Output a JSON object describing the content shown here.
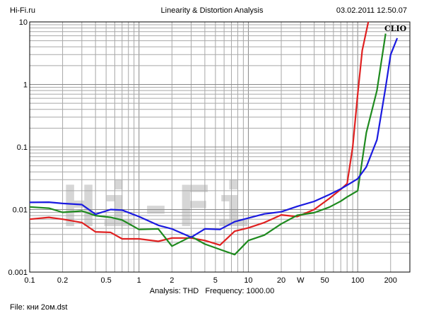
{
  "header": {
    "brand": "Hi-Fi.ru",
    "title": "Linearity & Distortion Analysis",
    "timestamp": "03.02.2011 12.50.07"
  },
  "footer": {
    "analysis_label": "Analysis: THD",
    "frequency_label": "Frequency: 1000.00",
    "file_label": "File: кни 2ом.dst"
  },
  "chart_data": {
    "type": "line",
    "title": "Linearity & Distortion Analysis",
    "xscale": "log",
    "yscale": "log",
    "xlim": [
      0.1,
      300
    ],
    "ylim": [
      0.001,
      10
    ],
    "grid": true,
    "x_tick_labels": [
      {
        "value": 0.1,
        "label": "0.1"
      },
      {
        "value": 0.2,
        "label": "0.2"
      },
      {
        "value": 0.5,
        "label": "0.5"
      },
      {
        "value": 1,
        "label": "1"
      },
      {
        "value": 2,
        "label": "2"
      },
      {
        "value": 5,
        "label": "5"
      },
      {
        "value": 10,
        "label": "10"
      },
      {
        "value": 20,
        "label": "20"
      },
      {
        "value": 30,
        "label": "W"
      },
      {
        "value": 50,
        "label": "50"
      },
      {
        "value": 100,
        "label": "100"
      },
      {
        "value": 200,
        "label": "200"
      }
    ],
    "y_tick_labels": [
      {
        "value": 10,
        "label": "10"
      },
      {
        "value": 1,
        "label": "1"
      },
      {
        "value": 0.1,
        "label": "0.1"
      },
      {
        "value": 0.01,
        "label": "0.01"
      },
      {
        "value": 0.001,
        "label": "0.001"
      }
    ],
    "brand_mark": "CLIO",
    "watermark": "Hi-Fi",
    "series": [
      {
        "color": "#e02020",
        "points": [
          [
            0.1,
            0.007
          ],
          [
            0.15,
            0.0075
          ],
          [
            0.2,
            0.007
          ],
          [
            0.3,
            0.0062
          ],
          [
            0.4,
            0.0044
          ],
          [
            0.55,
            0.0043
          ],
          [
            0.7,
            0.0034
          ],
          [
            1,
            0.0034
          ],
          [
            1.5,
            0.0031
          ],
          [
            2,
            0.0035
          ],
          [
            3,
            0.0035
          ],
          [
            4,
            0.0032
          ],
          [
            5.5,
            0.0027
          ],
          [
            7.5,
            0.0045
          ],
          [
            10,
            0.0051
          ],
          [
            14,
            0.0062
          ],
          [
            20,
            0.0082
          ],
          [
            28,
            0.0077
          ],
          [
            40,
            0.01
          ],
          [
            55,
            0.015
          ],
          [
            70,
            0.021
          ],
          [
            80,
            0.026
          ],
          [
            90,
            0.1
          ],
          [
            100,
            0.7
          ],
          [
            110,
            3.5
          ],
          [
            125,
            10
          ]
        ]
      },
      {
        "color": "#1e8a1e",
        "points": [
          [
            0.1,
            0.011
          ],
          [
            0.15,
            0.0105
          ],
          [
            0.2,
            0.009
          ],
          [
            0.3,
            0.0095
          ],
          [
            0.4,
            0.008
          ],
          [
            0.55,
            0.0075
          ],
          [
            0.7,
            0.0068
          ],
          [
            1,
            0.0048
          ],
          [
            1.5,
            0.0049
          ],
          [
            2,
            0.0026
          ],
          [
            3,
            0.0037
          ],
          [
            4,
            0.0028
          ],
          [
            5.5,
            0.0023
          ],
          [
            7.5,
            0.0019
          ],
          [
            10,
            0.0032
          ],
          [
            14,
            0.0039
          ],
          [
            20,
            0.0059
          ],
          [
            28,
            0.0081
          ],
          [
            40,
            0.0089
          ],
          [
            55,
            0.0109
          ],
          [
            70,
            0.0136
          ],
          [
            80,
            0.0159
          ],
          [
            100,
            0.02
          ],
          [
            120,
            0.17
          ],
          [
            150,
            0.8
          ],
          [
            180,
            6.5
          ]
        ]
      },
      {
        "color": "#1a1ae0",
        "points": [
          [
            0.1,
            0.013
          ],
          [
            0.15,
            0.0131
          ],
          [
            0.2,
            0.0125
          ],
          [
            0.3,
            0.012
          ],
          [
            0.4,
            0.0084
          ],
          [
            0.55,
            0.01
          ],
          [
            0.7,
            0.0098
          ],
          [
            1,
            0.0077
          ],
          [
            1.5,
            0.0056
          ],
          [
            2,
            0.0049
          ],
          [
            3,
            0.0036
          ],
          [
            4,
            0.0049
          ],
          [
            5.5,
            0.0048
          ],
          [
            7.5,
            0.0064
          ],
          [
            10,
            0.0073
          ],
          [
            14,
            0.0085
          ],
          [
            20,
            0.0092
          ],
          [
            28,
            0.0112
          ],
          [
            40,
            0.0135
          ],
          [
            55,
            0.0173
          ],
          [
            70,
            0.0214
          ],
          [
            80,
            0.0245
          ],
          [
            100,
            0.031
          ],
          [
            120,
            0.048
          ],
          [
            150,
            0.13
          ],
          [
            180,
            0.9
          ],
          [
            200,
            3
          ],
          [
            230,
            5.5
          ]
        ]
      }
    ]
  }
}
